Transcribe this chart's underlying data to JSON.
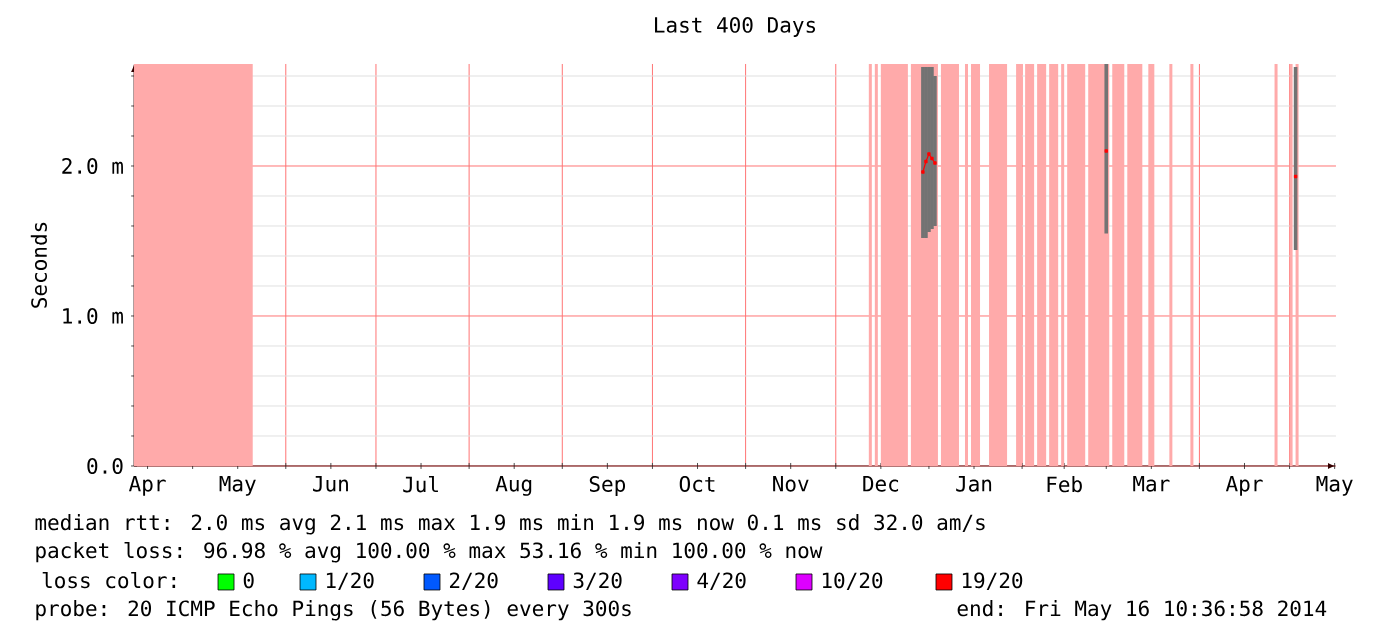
{
  "chart_data": {
    "type": "line",
    "title": "Last 400 Days",
    "ylabel": "Seconds",
    "xlim": [
      "2013-04-11T12:00",
      "2014-05-16T10:36"
    ],
    "xticks": [
      {
        "value": "2013-04-16",
        "label": "Apr"
      },
      {
        "value": "2013-05-01",
        "label": null
      },
      {
        "value": "2013-05-16",
        "label": "May"
      },
      {
        "value": "2013-06-01",
        "label": null
      },
      {
        "value": "2013-06-16",
        "label": "Jun"
      },
      {
        "value": "2013-07-01",
        "label": null
      },
      {
        "value": "2013-07-16",
        "label": "Jul"
      },
      {
        "value": "2013-08-01",
        "label": null
      },
      {
        "value": "2013-08-16",
        "label": "Aug"
      },
      {
        "value": "2013-09-01",
        "label": null
      },
      {
        "value": "2013-09-16",
        "label": "Sep"
      },
      {
        "value": "2013-10-01",
        "label": null
      },
      {
        "value": "2013-10-16",
        "label": "Oct"
      },
      {
        "value": "2013-11-01",
        "label": null
      },
      {
        "value": "2013-11-16",
        "label": "Nov"
      },
      {
        "value": "2013-12-01",
        "label": null
      },
      {
        "value": "2013-12-16",
        "label": "Dec"
      },
      {
        "value": "2014-01-01",
        "label": null
      },
      {
        "value": "2014-01-16",
        "label": "Jan"
      },
      {
        "value": "2014-02-01",
        "label": null
      },
      {
        "value": "2014-02-15",
        "label": "Feb"
      },
      {
        "value": "2014-03-01",
        "label": null
      },
      {
        "value": "2014-03-16",
        "label": "Mar"
      },
      {
        "value": "2014-04-01",
        "label": null
      },
      {
        "value": "2014-04-16",
        "label": "Apr"
      },
      {
        "value": "2014-05-01",
        "label": null
      },
      {
        "value": "2014-05-16",
        "label": "May"
      }
    ],
    "ylim": [
      0,
      2.68
    ],
    "yticks": [
      {
        "value": 0,
        "label": "0.0"
      },
      {
        "value": 0.2,
        "label": null
      },
      {
        "value": 0.4,
        "label": null
      },
      {
        "value": 0.6,
        "label": null
      },
      {
        "value": 0.8,
        "label": null
      },
      {
        "value": 1,
        "label": "1.0 m"
      },
      {
        "value": 1.2,
        "label": null
      },
      {
        "value": 1.4,
        "label": null
      },
      {
        "value": 1.6,
        "label": null
      },
      {
        "value": 1.8,
        "label": null
      },
      {
        "value": 2,
        "label": "2.0 m"
      },
      {
        "value": 2.2,
        "label": null
      },
      {
        "value": 2.4,
        "label": null
      },
      {
        "value": 2.6,
        "label": null
      }
    ],
    "grid": true,
    "legend": "bottom",
    "legend_title": "loss color:",
    "series": [
      {
        "color": "#ff0000",
        "marker": "square",
        "x": [
          "2013-12-30",
          "2013-12-31",
          "2014-01-01",
          "2014-01-02",
          "2014-01-03",
          "2014-02-10",
          "2014-03-01",
          "2014-04-10",
          "2014-05-03"
        ],
        "values": [
          1.96,
          2.03,
          2.08,
          2.05,
          2.02,
          null,
          2.1,
          null,
          1.93
        ],
        "lower": [
          1.52,
          1.52,
          1.56,
          1.58,
          1.6,
          null,
          1.55,
          null,
          1.44
        ],
        "upper": [
          2.66,
          2.66,
          2.66,
          2.66,
          2.6,
          null,
          2.68,
          null,
          2.66
        ]
      },
      {
        "name": "0",
        "color": "#00ff00"
      },
      {
        "name": "1/20",
        "color": "#00b8ff"
      },
      {
        "name": "2/20",
        "color": "#0059ff"
      },
      {
        "name": "3/20",
        "color": "#5e00ff"
      },
      {
        "name": "4/20",
        "color": "#7e00ff"
      },
      {
        "name": "10/20",
        "color": "#dd00ff"
      },
      {
        "name": "19/20",
        "color": "#ff0000"
      }
    ],
    "bands": [
      {
        "axis": "x",
        "from": "2013-04-11T12:00",
        "to": "2013-05-21",
        "color": "#ffaaaa"
      },
      {
        "axis": "x",
        "from": "2013-12-12",
        "to": "2013-12-13",
        "color": "#ffaaaa"
      },
      {
        "axis": "x",
        "from": "2013-12-14",
        "to": "2013-12-15",
        "color": "#ffaaaa"
      },
      {
        "axis": "x",
        "from": "2013-12-16",
        "to": "2013-12-25",
        "color": "#ffaaaa"
      },
      {
        "axis": "x",
        "from": "2013-12-26",
        "to": "2014-01-04",
        "color": "#ffaaaa"
      },
      {
        "axis": "x",
        "from": "2014-01-05",
        "to": "2014-01-11",
        "color": "#ffaaaa"
      },
      {
        "axis": "x",
        "from": "2014-01-13",
        "to": "2014-01-14",
        "color": "#ffaaaa"
      },
      {
        "axis": "x",
        "from": "2014-01-15",
        "to": "2014-01-18",
        "color": "#ffaaaa"
      },
      {
        "axis": "x",
        "from": "2014-01-21",
        "to": "2014-01-27",
        "color": "#ffaaaa"
      },
      {
        "axis": "x",
        "from": "2014-01-30",
        "to": "2014-02-01",
        "color": "#ffaaaa"
      },
      {
        "axis": "x",
        "from": "2014-02-02",
        "to": "2014-02-05",
        "color": "#ffaaaa"
      },
      {
        "axis": "x",
        "from": "2014-02-06",
        "to": "2014-02-09",
        "color": "#ffaaaa"
      },
      {
        "axis": "x",
        "from": "2014-02-10",
        "to": "2014-02-13",
        "color": "#ffaaaa"
      },
      {
        "axis": "x",
        "from": "2014-02-14",
        "to": "2014-02-15",
        "color": "#ffaaaa"
      },
      {
        "axis": "x",
        "from": "2014-02-16",
        "to": "2014-02-22",
        "color": "#ffaaaa"
      },
      {
        "axis": "x",
        "from": "2014-02-23",
        "to": "2014-03-02",
        "color": "#ffaaaa"
      },
      {
        "axis": "x",
        "from": "2014-03-03",
        "to": "2014-03-07",
        "color": "#ffaaaa"
      },
      {
        "axis": "x",
        "from": "2014-03-08",
        "to": "2014-03-13",
        "color": "#ffaaaa"
      },
      {
        "axis": "x",
        "from": "2014-03-15",
        "to": "2014-03-17",
        "color": "#ffaaaa"
      },
      {
        "axis": "x",
        "from": "2014-03-22",
        "to": "2014-03-23",
        "color": "#ffaaaa"
      },
      {
        "axis": "x",
        "from": "2014-03-29",
        "to": "2014-03-30",
        "color": "#ffaaaa"
      },
      {
        "axis": "x",
        "from": "2014-04-26",
        "to": "2014-04-27",
        "color": "#ffaaaa"
      },
      {
        "axis": "x",
        "from": "2014-05-01",
        "to": "2014-05-02",
        "color": "#ffaaaa"
      },
      {
        "axis": "x",
        "from": "2014-05-03",
        "to": "2014-05-04",
        "color": "#ffaaaa"
      }
    ],
    "annotations": [
      "median rtt:  2.0 ms avg  2.1 ms max  1.9 ms min  1.9 ms now  0.1 ms sd  32.0   am/s",
      "packet loss: 96.98 % avg  100.00 % max  53.16 % min  100.00 % now",
      "probe:       20 ICMP Echo Pings (56 Bytes) every 300s",
      "end: Fri May 16 10:36:58 2014"
    ]
  }
}
